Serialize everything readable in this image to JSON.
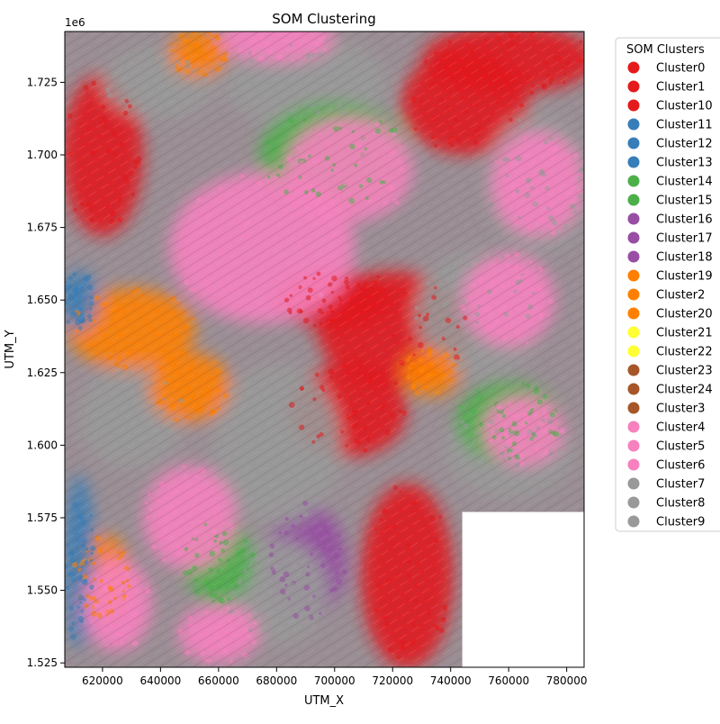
{
  "chart_data": {
    "type": "scatter",
    "title": "SOM Clustering",
    "xlabel": "UTM_X",
    "ylabel": "UTM_Y",
    "y_offset_label": "1e6",
    "xlim": [
      607000,
      786000
    ],
    "ylim": [
      1523500,
      1742500
    ],
    "xticks": [
      620000,
      640000,
      660000,
      680000,
      700000,
      720000,
      740000,
      760000,
      780000
    ],
    "xtick_labels": [
      "620000",
      "640000",
      "660000",
      "680000",
      "700000",
      "720000",
      "740000",
      "760000",
      "780000"
    ],
    "yticks": [
      1525000,
      1550000,
      1575000,
      1600000,
      1625000,
      1650000,
      1675000,
      1700000,
      1725000
    ],
    "ytick_labels": [
      "1.525",
      "1.550",
      "1.575",
      "1.600",
      "1.625",
      "1.650",
      "1.675",
      "1.700",
      "1.725"
    ],
    "grid": false,
    "legend_title": "SOM Clusters",
    "legend_position": "outside-right",
    "series": [
      {
        "name": "Cluster0",
        "color": "#e41a1c"
      },
      {
        "name": "Cluster1",
        "color": "#e41a1c"
      },
      {
        "name": "Cluster10",
        "color": "#e41a1c"
      },
      {
        "name": "Cluster11",
        "color": "#377eb8"
      },
      {
        "name": "Cluster12",
        "color": "#377eb8"
      },
      {
        "name": "Cluster13",
        "color": "#377eb8"
      },
      {
        "name": "Cluster14",
        "color": "#4daf4a"
      },
      {
        "name": "Cluster15",
        "color": "#4daf4a"
      },
      {
        "name": "Cluster16",
        "color": "#984ea3"
      },
      {
        "name": "Cluster17",
        "color": "#984ea3"
      },
      {
        "name": "Cluster18",
        "color": "#984ea3"
      },
      {
        "name": "Cluster19",
        "color": "#ff7f00"
      },
      {
        "name": "Cluster2",
        "color": "#ff7f00"
      },
      {
        "name": "Cluster20",
        "color": "#ff7f00"
      },
      {
        "name": "Cluster21",
        "color": "#ffff33"
      },
      {
        "name": "Cluster22",
        "color": "#ffff33"
      },
      {
        "name": "Cluster23",
        "color": "#a65628"
      },
      {
        "name": "Cluster24",
        "color": "#a65628"
      },
      {
        "name": "Cluster3",
        "color": "#a65628"
      },
      {
        "name": "Cluster4",
        "color": "#f781bf"
      },
      {
        "name": "Cluster5",
        "color": "#f781bf"
      },
      {
        "name": "Cluster6",
        "color": "#f781bf"
      },
      {
        "name": "Cluster7",
        "color": "#999999"
      },
      {
        "name": "Cluster8",
        "color": "#999999"
      },
      {
        "name": "Cluster9",
        "color": "#999999"
      }
    ],
    "regions": [
      {
        "color": "#e41a1c",
        "cx": 760000,
        "cy": 1733000,
        "rx": 30000,
        "ry": 12000
      },
      {
        "color": "#e41a1c",
        "cx": 745000,
        "cy": 1718000,
        "rx": 22000,
        "ry": 18000
      },
      {
        "color": "#e41a1c",
        "cx": 620000,
        "cy": 1700000,
        "rx": 14000,
        "ry": 28000
      },
      {
        "color": "#e41a1c",
        "cx": 720000,
        "cy": 1640000,
        "rx": 26000,
        "ry": 20000
      },
      {
        "color": "#e41a1c",
        "cx": 705000,
        "cy": 1612000,
        "rx": 20000,
        "ry": 16000
      },
      {
        "color": "#e41a1c",
        "cx": 725000,
        "cy": 1555000,
        "rx": 16000,
        "ry": 32000
      },
      {
        "color": "#e41a1c",
        "cx": 700000,
        "cy": 1650000,
        "rx": 20000,
        "ry": 10000
      },
      {
        "color": "#984ea3",
        "cx": 690000,
        "cy": 1560000,
        "rx": 14000,
        "ry": 20000
      },
      {
        "color": "#999999",
        "cx": 690000,
        "cy": 1725000,
        "rx": 28000,
        "ry": 16000
      },
      {
        "color": "#999999",
        "cx": 640000,
        "cy": 1725000,
        "rx": 20000,
        "ry": 12000
      },
      {
        "color": "#999999",
        "cx": 770000,
        "cy": 1690000,
        "rx": 18000,
        "ry": 24000
      },
      {
        "color": "#999999",
        "cx": 750000,
        "cy": 1645000,
        "rx": 22000,
        "ry": 22000
      },
      {
        "color": "#999999",
        "cx": 680000,
        "cy": 1600000,
        "rx": 22000,
        "ry": 28000
      },
      {
        "color": "#999999",
        "cx": 760000,
        "cy": 1598000,
        "rx": 22000,
        "ry": 16000
      },
      {
        "color": "#999999",
        "cx": 630000,
        "cy": 1610000,
        "rx": 18000,
        "ry": 18000
      },
      {
        "color": "#999999",
        "cx": 680000,
        "cy": 1550000,
        "rx": 18000,
        "ry": 18000
      },
      {
        "color": "#4daf4a",
        "cx": 700000,
        "cy": 1700000,
        "rx": 26000,
        "ry": 18000
      },
      {
        "color": "#4daf4a",
        "cx": 660000,
        "cy": 1560000,
        "rx": 12000,
        "ry": 14000
      },
      {
        "color": "#4daf4a",
        "cx": 760000,
        "cy": 1608000,
        "rx": 18000,
        "ry": 14000
      },
      {
        "color": "#ff7f00",
        "cx": 630000,
        "cy": 1640000,
        "rx": 22000,
        "ry": 14000
      },
      {
        "color": "#ff7f00",
        "cx": 650000,
        "cy": 1620000,
        "rx": 14000,
        "ry": 12000
      },
      {
        "color": "#ff7f00",
        "cx": 620000,
        "cy": 1555000,
        "rx": 10000,
        "ry": 14000
      },
      {
        "color": "#ff7f00",
        "cx": 653000,
        "cy": 1735000,
        "rx": 10000,
        "ry": 8000
      },
      {
        "color": "#ff7f00",
        "cx": 733000,
        "cy": 1625000,
        "rx": 10000,
        "ry": 8000
      },
      {
        "color": "#377eb8",
        "cx": 612000,
        "cy": 1650000,
        "rx": 6000,
        "ry": 10000
      },
      {
        "color": "#377eb8",
        "cx": 612000,
        "cy": 1560000,
        "rx": 5000,
        "ry": 30000
      },
      {
        "color": "#f781bf",
        "cx": 675000,
        "cy": 1668000,
        "rx": 32000,
        "ry": 26000
      },
      {
        "color": "#f781bf",
        "cx": 705000,
        "cy": 1695000,
        "rx": 22000,
        "ry": 18000
      },
      {
        "color": "#f781bf",
        "cx": 770000,
        "cy": 1690000,
        "rx": 16000,
        "ry": 18000
      },
      {
        "color": "#f781bf",
        "cx": 760000,
        "cy": 1650000,
        "rx": 16000,
        "ry": 16000
      },
      {
        "color": "#f781bf",
        "cx": 650000,
        "cy": 1575000,
        "rx": 16000,
        "ry": 18000
      },
      {
        "color": "#f781bf",
        "cx": 625000,
        "cy": 1545000,
        "rx": 12000,
        "ry": 16000
      },
      {
        "color": "#f781bf",
        "cx": 660000,
        "cy": 1535000,
        "rx": 14000,
        "ry": 10000
      },
      {
        "color": "#f781bf",
        "cx": 680000,
        "cy": 1740000,
        "rx": 20000,
        "ry": 8000
      },
      {
        "color": "#f781bf",
        "cx": 765000,
        "cy": 1605000,
        "rx": 14000,
        "ry": 12000
      }
    ],
    "blank_region": {
      "x": [
        744000,
        786000
      ],
      "y": [
        1523500,
        1577000
      ]
    }
  }
}
